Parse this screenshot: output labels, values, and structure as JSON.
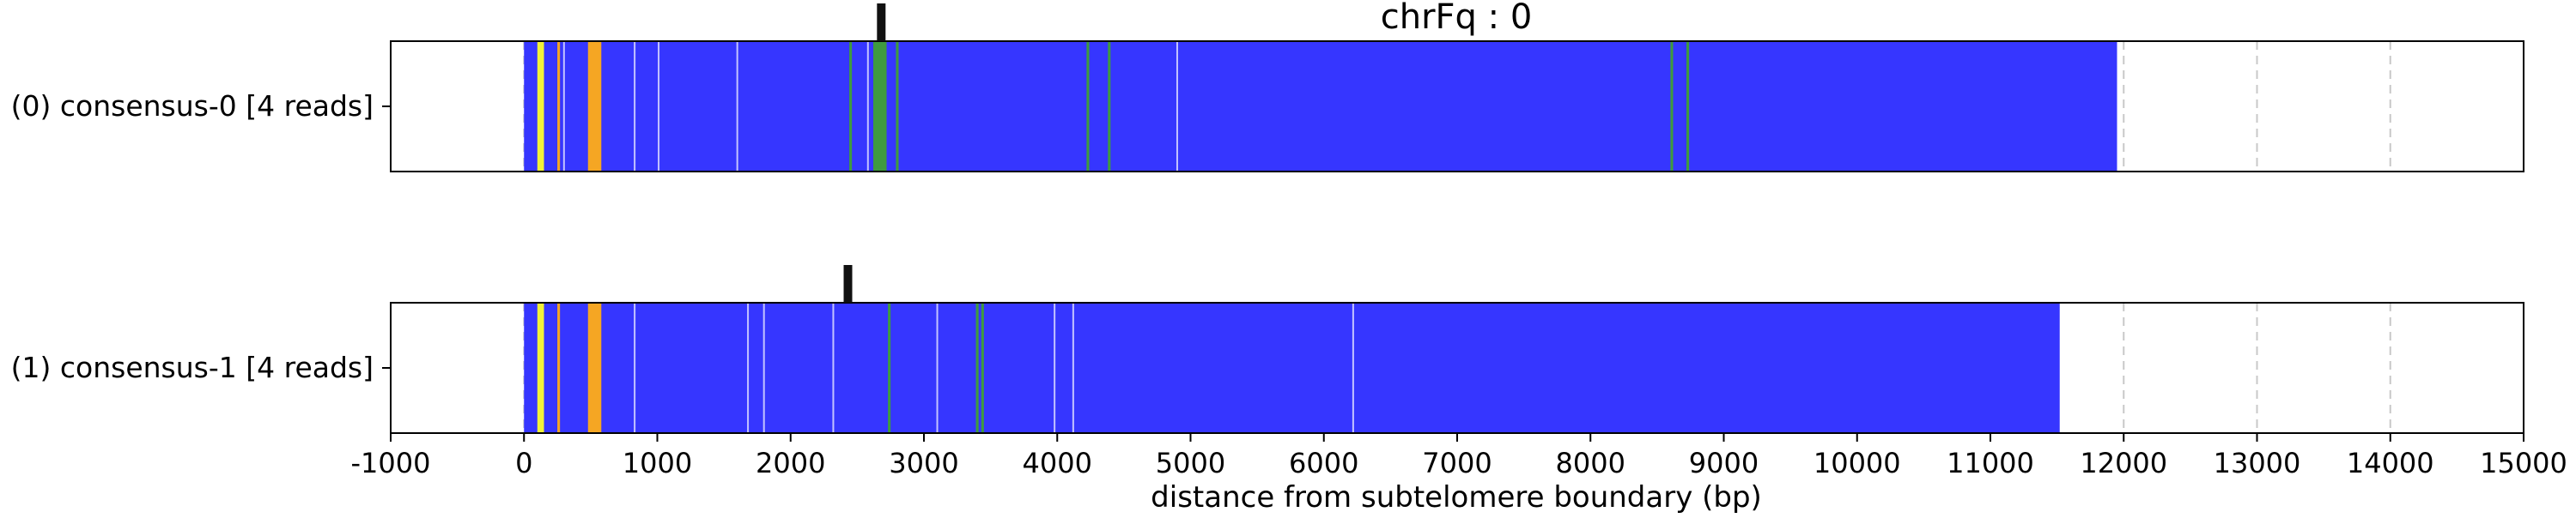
{
  "chart_data": {
    "type": "track",
    "title": "chrFq : 0",
    "xlabel": "distance from subtelomere boundary (bp)",
    "xlim": [
      -1000,
      15000
    ],
    "xticks": [
      -1000,
      0,
      1000,
      2000,
      3000,
      4000,
      5000,
      6000,
      7000,
      8000,
      9000,
      10000,
      11000,
      12000,
      13000,
      14000,
      15000
    ],
    "xtick_labels": [
      "-1000",
      "0",
      "1000",
      "2000",
      "3000",
      "4000",
      "5000",
      "6000",
      "7000",
      "8000",
      "9000",
      "10000",
      "11000",
      "12000",
      "13000",
      "14000",
      "15000"
    ],
    "gridlines": "dashed vertical at each tick",
    "colors": {
      "main": "#3636ff",
      "yellow": "#f2f238",
      "orange": "#f5a623",
      "green": "#3f9a3f",
      "white": "#ffffff",
      "grid": "#c8c8c8",
      "marker": "#111111"
    },
    "tracks": [
      {
        "label": "(0) consensus-0 [4 reads]",
        "start": 0,
        "end": 11950,
        "marker": 2680,
        "segments": [
          {
            "start": 100,
            "end": 150,
            "color": "yellow"
          },
          {
            "start": 250,
            "end": 270,
            "color": "orange"
          },
          {
            "start": 480,
            "end": 580,
            "color": "orange"
          },
          {
            "start": 2620,
            "end": 2720,
            "color": "green"
          },
          {
            "start": 2440,
            "end": 2460,
            "color": "green"
          },
          {
            "start": 2790,
            "end": 2810,
            "color": "green"
          },
          {
            "start": 4220,
            "end": 4240,
            "color": "green"
          },
          {
            "start": 4380,
            "end": 4400,
            "color": "green"
          },
          {
            "start": 8600,
            "end": 8620,
            "color": "green"
          },
          {
            "start": 8720,
            "end": 8740,
            "color": "green"
          }
        ],
        "thin_lines": [
          {
            "pos": 140,
            "color": "white"
          },
          {
            "pos": 300,
            "color": "white"
          },
          {
            "pos": 830,
            "color": "white"
          },
          {
            "pos": 1010,
            "color": "white"
          },
          {
            "pos": 1600,
            "color": "white"
          },
          {
            "pos": 2580,
            "color": "white"
          },
          {
            "pos": 4900,
            "color": "white"
          }
        ]
      },
      {
        "label": "(1) consensus-1 [4 reads]",
        "start": 0,
        "end": 11520,
        "marker": 2430,
        "segments": [
          {
            "start": 100,
            "end": 150,
            "color": "yellow"
          },
          {
            "start": 250,
            "end": 270,
            "color": "orange"
          },
          {
            "start": 480,
            "end": 580,
            "color": "orange"
          },
          {
            "start": 2730,
            "end": 2750,
            "color": "green"
          },
          {
            "start": 3390,
            "end": 3410,
            "color": "green"
          },
          {
            "start": 3430,
            "end": 3450,
            "color": "green"
          }
        ],
        "thin_lines": [
          {
            "pos": 140,
            "color": "white"
          },
          {
            "pos": 830,
            "color": "white"
          },
          {
            "pos": 1680,
            "color": "white"
          },
          {
            "pos": 1800,
            "color": "white"
          },
          {
            "pos": 2320,
            "color": "white"
          },
          {
            "pos": 3100,
            "color": "white"
          },
          {
            "pos": 3980,
            "color": "white"
          },
          {
            "pos": 4120,
            "color": "white"
          },
          {
            "pos": 6220,
            "color": "white"
          }
        ]
      }
    ]
  }
}
